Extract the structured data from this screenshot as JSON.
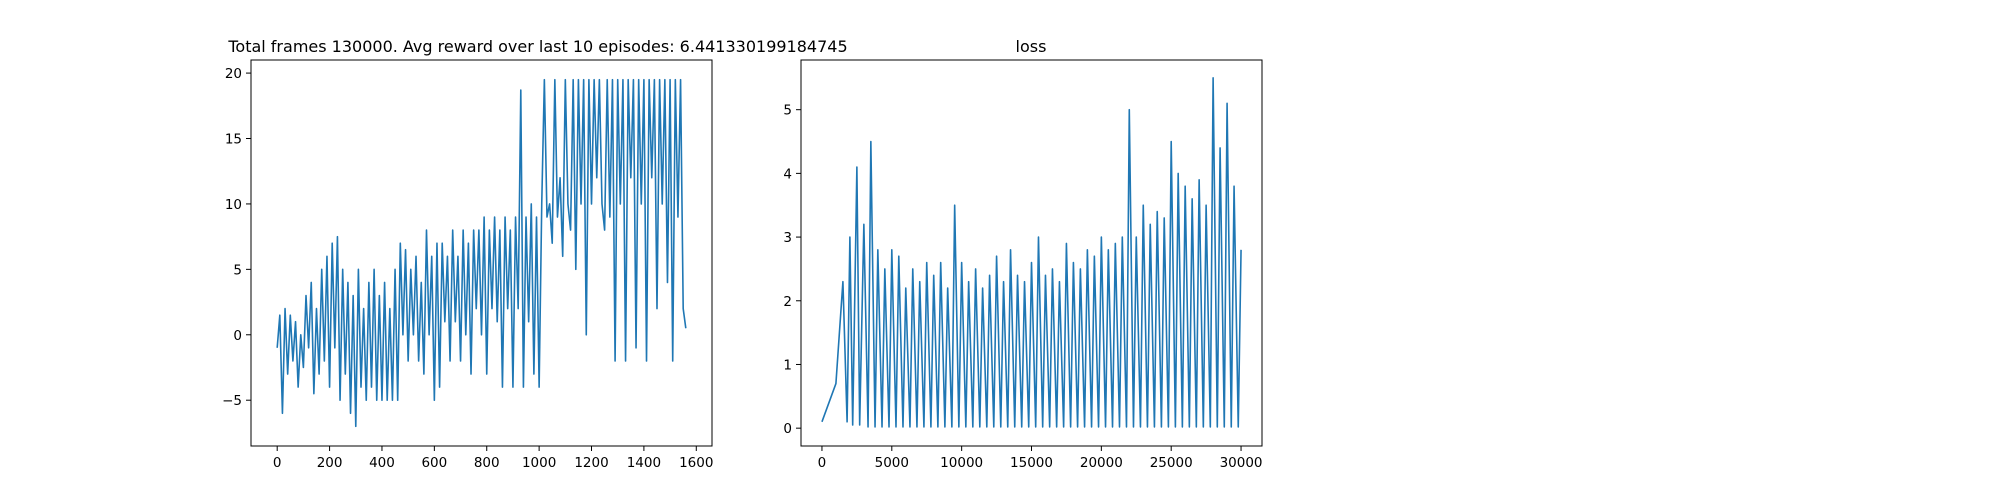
{
  "figure": {
    "background": "#ffffff"
  },
  "chart_data": [
    {
      "type": "line",
      "title": "Total frames 130000. Avg reward over last 10 episodes: 6.441330199184745",
      "xlabel": "",
      "ylabel": "",
      "xlim": [
        -100,
        1660
      ],
      "ylim": [
        -8.5,
        21
      ],
      "xticks": [
        0,
        200,
        400,
        600,
        800,
        1000,
        1200,
        1400,
        1600
      ],
      "yticks": [
        -5,
        0,
        5,
        10,
        15,
        20
      ],
      "grid": false,
      "color": "#1f77b4",
      "series": [
        {
          "x": [
            0,
            10,
            20,
            30,
            40,
            50,
            60,
            70,
            80,
            90,
            100,
            110,
            120,
            130,
            140,
            150,
            160,
            170,
            180,
            190,
            200,
            210,
            220,
            230,
            240,
            250,
            260,
            270,
            280,
            290,
            300,
            310,
            320,
            330,
            340,
            350,
            360,
            370,
            380,
            390,
            400,
            410,
            420,
            430,
            440,
            450,
            460,
            470,
            480,
            490,
            500,
            510,
            520,
            530,
            540,
            550,
            560,
            570,
            580,
            590,
            600,
            610,
            620,
            630,
            640,
            650,
            660,
            670,
            680,
            690,
            700,
            710,
            720,
            730,
            740,
            750,
            760,
            770,
            780,
            790,
            800,
            810,
            820,
            830,
            840,
            850,
            860,
            870,
            880,
            890,
            900,
            910,
            920,
            930,
            940,
            950,
            960,
            970,
            980,
            990,
            1000,
            1010,
            1020,
            1030,
            1040,
            1050,
            1060,
            1070,
            1080,
            1090,
            1100,
            1110,
            1120,
            1130,
            1140,
            1150,
            1160,
            1170,
            1180,
            1190,
            1200,
            1210,
            1220,
            1230,
            1240,
            1250,
            1260,
            1270,
            1280,
            1290,
            1300,
            1310,
            1320,
            1330,
            1340,
            1350,
            1360,
            1370,
            1380,
            1390,
            1400,
            1410,
            1420,
            1430,
            1440,
            1450,
            1460,
            1470,
            1480,
            1490,
            1500,
            1510,
            1520,
            1530,
            1540,
            1550,
            1560
          ],
          "y": [
            -1,
            1.5,
            -6,
            2,
            -3,
            1.5,
            -2,
            1,
            -4,
            0,
            -2.5,
            3,
            -1,
            4,
            -4.5,
            2,
            -3,
            5,
            -2,
            6,
            -4,
            7,
            -1,
            7.5,
            -5,
            5,
            -3,
            4,
            -6,
            3,
            -7,
            5,
            -4,
            2,
            -5,
            4,
            -4,
            5,
            -5,
            3,
            -5,
            4,
            -5,
            2,
            -5,
            5,
            -5,
            7,
            0,
            6.5,
            -2,
            5,
            0,
            6,
            -2,
            4,
            -3,
            8,
            0,
            6,
            -5,
            7,
            -4,
            7,
            1,
            6,
            -2,
            8,
            1,
            6,
            -2,
            8,
            0,
            7,
            -3,
            8,
            2,
            8,
            0,
            9,
            -3,
            8,
            2,
            9,
            1,
            8,
            -4,
            9,
            2,
            8,
            -4,
            9,
            2,
            18.7,
            -4,
            9,
            1,
            10,
            -3,
            9,
            -4,
            10,
            19.5,
            9,
            10,
            7,
            19.5,
            9,
            12,
            6,
            19.5,
            10,
            8,
            19.5,
            5,
            19.5,
            10,
            19.5,
            0,
            19.5,
            10,
            19.5,
            12,
            19.5,
            10,
            8,
            19.5,
            9,
            19.5,
            -2,
            19.5,
            10,
            19.5,
            -2,
            19.5,
            12,
            19.5,
            -1,
            19.5,
            10,
            19.5,
            -2,
            19.5,
            12,
            19.5,
            2,
            19.5,
            10,
            19.5,
            4,
            19.5,
            -2,
            19.5,
            9,
            19.5,
            2,
            0.5
          ]
        }
      ]
    },
    {
      "type": "line",
      "title": "loss",
      "xlabel": "",
      "ylabel": "",
      "xlim": [
        -1500,
        31500
      ],
      "ylim": [
        -0.28,
        5.78
      ],
      "xticks": [
        0,
        5000,
        10000,
        15000,
        20000,
        25000,
        30000
      ],
      "yticks": [
        0,
        1,
        2,
        3,
        4,
        5
      ],
      "grid": false,
      "color": "#1f77b4",
      "series": [
        {
          "x": [
            0,
            500,
            1000,
            1500,
            1800,
            2000,
            2200,
            2500,
            2700,
            3000,
            3300,
            3500,
            3800,
            4000,
            4300,
            4500,
            4800,
            5000,
            5300,
            5500,
            5800,
            6000,
            6300,
            6500,
            6800,
            7000,
            7300,
            7500,
            7800,
            8000,
            8300,
            8500,
            8800,
            9000,
            9300,
            9500,
            9800,
            10000,
            10300,
            10500,
            10800,
            11000,
            11300,
            11500,
            11800,
            12000,
            12300,
            12500,
            12800,
            13000,
            13300,
            13500,
            13800,
            14000,
            14300,
            14500,
            14800,
            15000,
            15300,
            15500,
            15800,
            16000,
            16300,
            16500,
            16800,
            17000,
            17300,
            17500,
            17800,
            18000,
            18300,
            18500,
            18800,
            19000,
            19300,
            19500,
            19800,
            20000,
            20300,
            20500,
            20800,
            21000,
            21300,
            21500,
            21800,
            22000,
            22300,
            22500,
            22800,
            23000,
            23300,
            23500,
            23800,
            24000,
            24300,
            24500,
            24800,
            25000,
            25300,
            25500,
            25800,
            26000,
            26300,
            26500,
            26800,
            27000,
            27300,
            27500,
            27800,
            28000,
            28300,
            28500,
            28800,
            29000,
            29300,
            29500,
            29800,
            30000
          ],
          "y": [
            0.1,
            0.4,
            0.7,
            2.3,
            0.1,
            3.0,
            0.05,
            4.1,
            0.05,
            3.2,
            0.02,
            4.5,
            0.02,
            2.8,
            0.02,
            2.5,
            0.02,
            2.8,
            0.02,
            2.7,
            0.02,
            2.2,
            0.02,
            2.5,
            0.02,
            2.3,
            0.02,
            2.6,
            0.02,
            2.4,
            0.02,
            2.6,
            0.02,
            2.2,
            0.02,
            3.5,
            0.02,
            2.6,
            0.02,
            2.3,
            0.02,
            2.5,
            0.02,
            2.2,
            0.02,
            2.4,
            0.02,
            2.7,
            0.02,
            2.3,
            0.02,
            2.8,
            0.02,
            2.4,
            0.02,
            2.3,
            0.02,
            2.6,
            0.02,
            3.0,
            0.02,
            2.4,
            0.02,
            2.5,
            0.02,
            2.3,
            0.02,
            2.9,
            0.02,
            2.6,
            0.02,
            2.5,
            0.02,
            2.8,
            0.02,
            2.7,
            0.02,
            3.0,
            0.02,
            2.8,
            0.02,
            2.9,
            0.02,
            3.0,
            0.02,
            5.0,
            0.02,
            3.0,
            0.02,
            3.5,
            0.02,
            3.2,
            0.02,
            3.4,
            0.02,
            3.3,
            0.02,
            4.5,
            0.02,
            4.0,
            0.02,
            3.8,
            0.02,
            3.6,
            0.02,
            3.9,
            0.02,
            3.5,
            0.02,
            5.5,
            0.02,
            4.4,
            0.02,
            5.1,
            0.02,
            3.8,
            0.02,
            2.8
          ]
        }
      ]
    }
  ]
}
